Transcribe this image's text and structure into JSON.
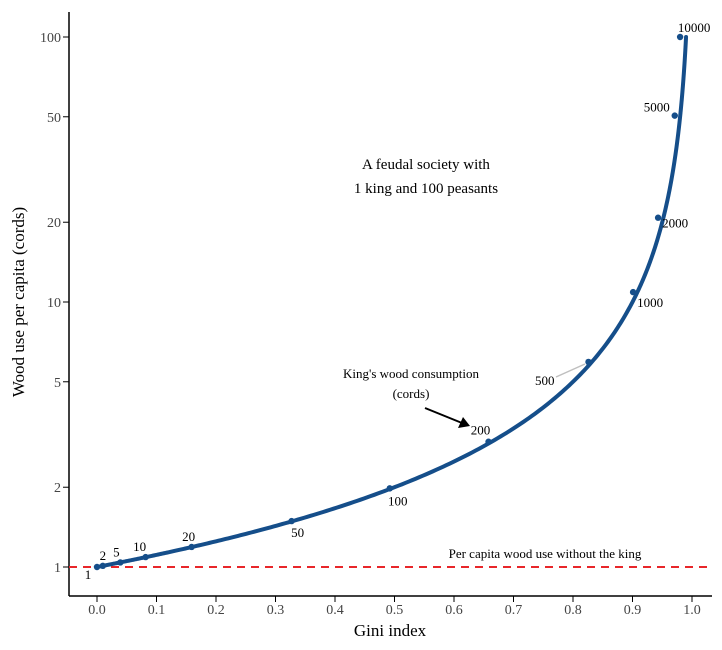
{
  "chart_data": {
    "type": "line",
    "xlabel": "Gini index",
    "ylabel": "Wood use per capita (cords)",
    "xlim": [
      -0.05,
      1.02
    ],
    "ylim": [
      0.85,
      122
    ],
    "y_scale": "log",
    "grid": false,
    "x_ticks": [
      "0.0",
      "0.1",
      "0.2",
      "0.3",
      "0.4",
      "0.5",
      "0.6",
      "0.7",
      "0.8",
      "0.9",
      "1.0"
    ],
    "y_ticks": [
      "1",
      "2",
      "5",
      "10",
      "20",
      "50",
      "100"
    ],
    "series": [
      {
        "color": "#154e8a",
        "point_labels": [
          "1",
          "2",
          "5",
          "10",
          "20",
          "50",
          "100",
          "200",
          "500",
          "1000",
          "2000",
          "5000",
          "10000"
        ],
        "x": [
          0.0,
          0.0098,
          0.0392,
          0.0817,
          0.159,
          0.327,
          0.492,
          0.658,
          0.826,
          0.901,
          0.943,
          0.971,
          0.98
        ],
        "y": [
          1.0,
          1.01,
          1.04,
          1.09,
          1.19,
          1.49,
          1.98,
          2.97,
          5.94,
          10.9,
          20.8,
          50.5,
          100.0
        ]
      }
    ],
    "reference_line": {
      "y": 1,
      "color": "#e8262a",
      "label": "Per capita wood use without the king"
    },
    "annotations": {
      "society_line1": "A feudal society with",
      "society_line2": "1 king and 100 peasants",
      "king_line1": "King's wood consumption",
      "king_line2": "(cords)"
    }
  }
}
